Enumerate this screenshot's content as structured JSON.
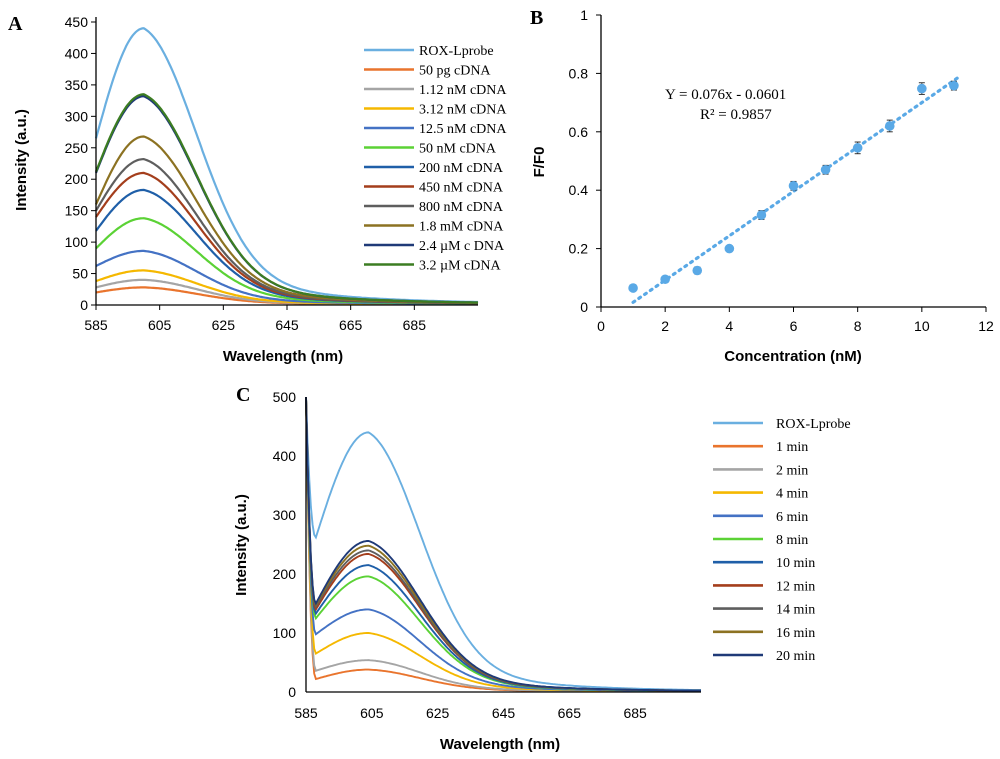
{
  "chart_data": [
    {
      "type": "line",
      "panel": "A",
      "xlabel": "Wavelength (nm)",
      "ylabel": "Intensity (a.u.)",
      "xlim": [
        585,
        705
      ],
      "ylim": [
        0,
        450
      ],
      "xticks": [
        585,
        605,
        625,
        645,
        665,
        685
      ],
      "yticks": [
        0,
        50,
        100,
        150,
        200,
        250,
        300,
        350,
        400,
        450
      ],
      "legend_position": "top-right",
      "series": [
        {
          "name": "ROX-Lprobe",
          "color": "#6aafe0",
          "start": 265,
          "peak": 440
        },
        {
          "name": "50 pg cDNA",
          "color": "#e9742d",
          "start": 20,
          "peak": 28
        },
        {
          "name": "1.12 nM cDNA",
          "color": "#a5a5a5",
          "start": 28,
          "peak": 40
        },
        {
          "name": "3.12 nM cDNA",
          "color": "#f5b800",
          "start": 38,
          "peak": 55
        },
        {
          "name": "12.5 nM cDNA",
          "color": "#4472c4",
          "start": 62,
          "peak": 86
        },
        {
          "name": "50 nM cDNA",
          "color": "#5bd235",
          "start": 90,
          "peak": 138
        },
        {
          "name": "200 nM cDNA",
          "color": "#1f5fa8",
          "start": 118,
          "peak": 183
        },
        {
          "name": "450 nM cDNA",
          "color": "#a43e1c",
          "start": 140,
          "peak": 210
        },
        {
          "name": "800 nM cDNA",
          "color": "#5e5e5e",
          "start": 150,
          "peak": 232
        },
        {
          "name": "1.8 mM cDNA",
          "color": "#8c7222",
          "start": 160,
          "peak": 268
        },
        {
          "name": "2.4 µM c DNA",
          "color": "#1f3a78",
          "start": 210,
          "peak": 332
        },
        {
          "name": "3.2 µM cDNA",
          "color": "#3c7d22",
          "start": 212,
          "peak": 335
        }
      ]
    },
    {
      "type": "scatter",
      "panel": "B",
      "xlabel": "Concentration (nM)",
      "ylabel": "F/F0",
      "xlim": [
        0,
        12
      ],
      "ylim": [
        0,
        1
      ],
      "xticks": [
        0,
        2,
        4,
        6,
        8,
        10,
        12
      ],
      "yticks": [
        0,
        0.2,
        0.4,
        0.6,
        0.8,
        1
      ],
      "color": "#5aa9e6",
      "x": [
        1,
        2,
        3,
        4,
        5,
        6,
        7,
        8,
        9,
        10,
        11
      ],
      "y": [
        0.065,
        0.095,
        0.125,
        0.2,
        0.315,
        0.415,
        0.47,
        0.545,
        0.62,
        0.748,
        0.758
      ],
      "error": [
        0,
        0.01,
        0.012,
        0.008,
        0.015,
        0.015,
        0.015,
        0.02,
        0.02,
        0.02,
        0.015
      ],
      "trendline": {
        "slope": 0.076,
        "intercept": -0.0601,
        "x_range": [
          1,
          11.2
        ]
      },
      "equation": "Y = 0.076x - 0.0601",
      "r2": "R² = 0.9857"
    },
    {
      "type": "line",
      "panel": "C",
      "xlabel": "Wavelength (nm)",
      "ylabel": "Intensity (a.u.)",
      "xlim": [
        585,
        705
      ],
      "ylim": [
        0,
        500
      ],
      "xticks": [
        585,
        605,
        625,
        645,
        665,
        685
      ],
      "yticks": [
        0,
        100,
        200,
        300,
        400,
        500
      ],
      "legend_position": "right",
      "series": [
        {
          "name": "ROX-Lprobe",
          "color": "#6aafe0",
          "dip": 262,
          "peak": 440
        },
        {
          "name": "1 min",
          "color": "#e9742d",
          "dip": 22,
          "peak": 38
        },
        {
          "name": "2 min",
          "color": "#a5a5a5",
          "dip": 36,
          "peak": 54
        },
        {
          "name": "4 min",
          "color": "#f5b800",
          "dip": 65,
          "peak": 100
        },
        {
          "name": "6 min",
          "color": "#4472c4",
          "dip": 98,
          "peak": 140
        },
        {
          "name": "8 min",
          "color": "#5bd235",
          "dip": 125,
          "peak": 196
        },
        {
          "name": "10 min",
          "color": "#1f5fa8",
          "dip": 133,
          "peak": 215
        },
        {
          "name": "12 min",
          "color": "#a43e1c",
          "dip": 140,
          "peak": 234
        },
        {
          "name": "14 min",
          "color": "#5e5e5e",
          "dip": 145,
          "peak": 240
        },
        {
          "name": "16 min",
          "color": "#8c7222",
          "dip": 148,
          "peak": 248
        },
        {
          "name": "20 min",
          "color": "#1f3a78",
          "dip": 150,
          "peak": 256
        }
      ]
    }
  ]
}
